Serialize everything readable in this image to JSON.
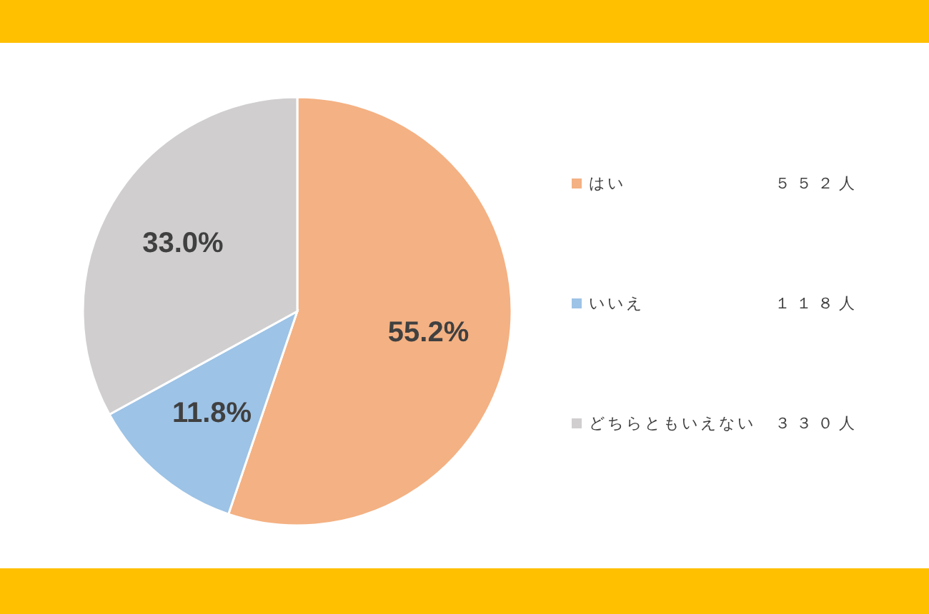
{
  "chart_data": {
    "type": "pie",
    "categories": [
      "はい",
      "いいえ",
      "どちらともいえない"
    ],
    "values": [
      55.2,
      11.8,
      33.0
    ],
    "value_labels": [
      "55.2%",
      "11.8%",
      "33.0%"
    ],
    "colors": [
      "#f4b183",
      "#9dc3e6",
      "#d0cece"
    ],
    "legend": "right",
    "annotations": [
      "５５２人",
      "１１８人",
      "３３０人"
    ]
  }
}
